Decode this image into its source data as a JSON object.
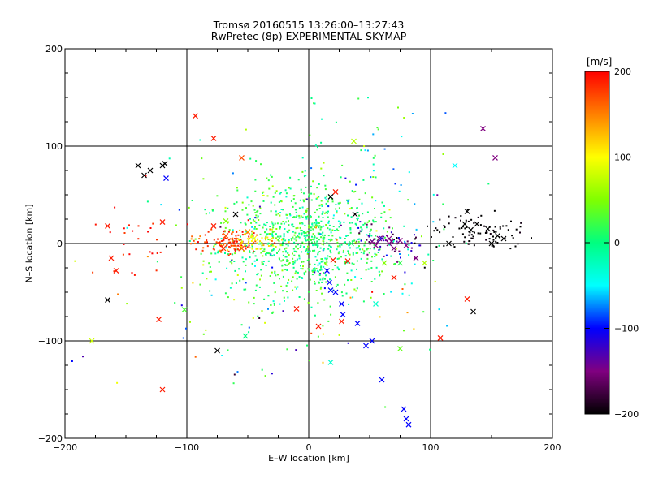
{
  "chart_data": {
    "type": "scatter",
    "title": "Tromsø 20160515 13:26:00–13:27:43",
    "subtitle": "RwPretec (8p) EXPERIMENTAL SKYMAP",
    "xlabel": "E–W location [km]",
    "ylabel": "N–S location [km]",
    "xlim": [
      -200,
      200
    ],
    "ylim": [
      -200,
      200
    ],
    "grid": true,
    "xticks": [
      "−200",
      "−100",
      "0",
      "100",
      "200"
    ],
    "yticks": [
      "−200",
      "−100",
      "0",
      "100",
      "200"
    ],
    "colorbar": {
      "label": "[m/s]",
      "range": [
        -200,
        200
      ],
      "ticks": [
        "200",
        "100",
        "0",
        "−100",
        "−200"
      ]
    },
    "clusters": [
      {
        "cx": 5,
        "cy": 3,
        "sx": 35,
        "sy": 28,
        "v": 5,
        "vs": 22,
        "n": 650
      },
      {
        "cx": -25,
        "cy": 2,
        "sx": 30,
        "sy": 40,
        "v": 30,
        "vs": 20,
        "n": 220
      },
      {
        "cx": -65,
        "cy": 1,
        "sx": 14,
        "sy": 6,
        "v": 175,
        "vs": 20,
        "n": 130
      },
      {
        "cx": -45,
        "cy": 2,
        "sx": 10,
        "sy": 5,
        "v": 100,
        "vs": 20,
        "n": 50
      },
      {
        "cx": 140,
        "cy": 12,
        "sx": 20,
        "sy": 9,
        "v": -200,
        "vs": 5,
        "n": 90
      },
      {
        "cx": 65,
        "cy": 2,
        "sx": 15,
        "sy": 7,
        "v": -145,
        "vs": 30,
        "n": 50
      },
      {
        "cx": 30,
        "cy": 40,
        "sx": 45,
        "sy": 65,
        "v": 0,
        "vs": 60,
        "n": 130
      },
      {
        "cx": -60,
        "cy": -30,
        "sx": 80,
        "sy": 60,
        "v": 40,
        "vs": 90,
        "n": 70
      },
      {
        "cx": -150,
        "cy": 0,
        "sx": 20,
        "sy": 25,
        "v": 190,
        "vs": 20,
        "n": 25
      },
      {
        "cx": 0,
        "cy": -60,
        "sx": 60,
        "sy": 50,
        "v": 0,
        "vs": 80,
        "n": 40
      }
    ],
    "crosses": [
      [
        -130,
        75,
        -200
      ],
      [
        -135,
        70,
        -200
      ],
      [
        -120,
        80,
        -200
      ],
      [
        -140,
        80,
        -200
      ],
      [
        -118,
        82,
        -200
      ],
      [
        -165,
        18,
        190
      ],
      [
        -158,
        -28,
        190
      ],
      [
        -162,
        -15,
        190
      ],
      [
        -120,
        22,
        190
      ],
      [
        -123,
        -78,
        190
      ],
      [
        -120,
        -150,
        190
      ],
      [
        -93,
        131,
        190
      ],
      [
        -78,
        108,
        190
      ],
      [
        -60,
        30,
        -200
      ],
      [
        -55,
        88,
        170
      ],
      [
        -52,
        -95,
        0
      ],
      [
        -75,
        -110,
        -200
      ],
      [
        -165,
        -58,
        -200
      ],
      [
        -178,
        -100,
        80
      ],
      [
        -102,
        -68,
        30
      ],
      [
        -117,
        67,
        -100
      ],
      [
        -78,
        18,
        190
      ],
      [
        -70,
        -5,
        180
      ],
      [
        -68,
        8,
        170
      ],
      [
        -68,
        23,
        50
      ],
      [
        -55,
        -5,
        170
      ],
      [
        -50,
        12,
        140
      ],
      [
        -45,
        5,
        100
      ],
      [
        -10,
        -67,
        190
      ],
      [
        8,
        -85,
        190
      ],
      [
        20,
        -17,
        190
      ],
      [
        27,
        -80,
        190
      ],
      [
        32,
        -18,
        190
      ],
      [
        22,
        53,
        190
      ],
      [
        18,
        48,
        -200
      ],
      [
        38,
        30,
        -200
      ],
      [
        15,
        -28,
        -100
      ],
      [
        17,
        -40,
        -100
      ],
      [
        18,
        -48,
        -100
      ],
      [
        22,
        -50,
        -100
      ],
      [
        27,
        -62,
        -100
      ],
      [
        28,
        -73,
        -100
      ],
      [
        40,
        -82,
        -100
      ],
      [
        47,
        -105,
        -100
      ],
      [
        52,
        -100,
        -100
      ],
      [
        60,
        -140,
        -100
      ],
      [
        78,
        -170,
        -100
      ],
      [
        80,
        -180,
        -100
      ],
      [
        82,
        -186,
        -100
      ],
      [
        35,
        0,
        10
      ],
      [
        52,
        2,
        -150
      ],
      [
        55,
        -2,
        -150
      ],
      [
        58,
        5,
        -150
      ],
      [
        66,
        5,
        -150
      ],
      [
        66,
        0,
        -150
      ],
      [
        68,
        2,
        -150
      ],
      [
        70,
        -5,
        -150
      ],
      [
        75,
        3,
        -150
      ],
      [
        80,
        -2,
        -150
      ],
      [
        88,
        -15,
        -150
      ],
      [
        60,
        5,
        -120
      ],
      [
        62,
        -20,
        50
      ],
      [
        75,
        -20,
        20
      ],
      [
        95,
        -20,
        70
      ],
      [
        70,
        -35,
        190
      ],
      [
        55,
        -62,
        -30
      ],
      [
        75,
        -108,
        40
      ],
      [
        18,
        -122,
        -30
      ],
      [
        37,
        105,
        70
      ],
      [
        120,
        80,
        -50
      ],
      [
        128,
        20,
        -200
      ],
      [
        130,
        33,
        -200
      ],
      [
        133,
        14,
        -200
      ],
      [
        138,
        20,
        -200
      ],
      [
        147,
        15,
        -200
      ],
      [
        155,
        8,
        -200
      ],
      [
        160,
        5,
        -200
      ],
      [
        150,
        0,
        -200
      ],
      [
        115,
        0,
        -200
      ],
      [
        135,
        -70,
        -200
      ],
      [
        130,
        -57,
        190
      ],
      [
        143,
        118,
        -150
      ],
      [
        153,
        88,
        -150
      ],
      [
        108,
        -97,
        190
      ]
    ]
  }
}
